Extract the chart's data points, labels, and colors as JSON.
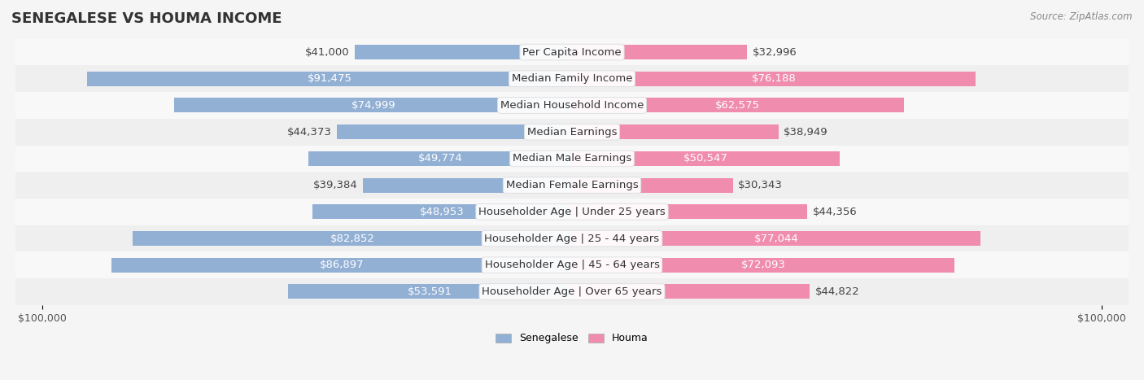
{
  "title": "SENEGALESE VS HOUMA INCOME",
  "source": "Source: ZipAtlas.com",
  "categories": [
    "Per Capita Income",
    "Median Family Income",
    "Median Household Income",
    "Median Earnings",
    "Median Male Earnings",
    "Median Female Earnings",
    "Householder Age | Under 25 years",
    "Householder Age | 25 - 44 years",
    "Householder Age | 45 - 64 years",
    "Householder Age | Over 65 years"
  ],
  "senegalese": [
    41000,
    91475,
    74999,
    44373,
    49774,
    39384,
    48953,
    82852,
    86897,
    53591
  ],
  "houma": [
    32996,
    76188,
    62575,
    38949,
    50547,
    30343,
    44356,
    77044,
    72093,
    44822
  ],
  "senegalese_labels": [
    "$41,000",
    "$91,475",
    "$74,999",
    "$44,373",
    "$49,774",
    "$39,384",
    "$48,953",
    "$82,852",
    "$86,897",
    "$53,591"
  ],
  "houma_labels": [
    "$32,996",
    "$76,188",
    "$62,575",
    "$38,949",
    "$50,547",
    "$30,343",
    "$44,356",
    "$77,044",
    "$72,093",
    "$44,822"
  ],
  "max_val": 100000,
  "blue_color": "#92afd4",
  "pink_color": "#f08cad",
  "blue_dark": "#6688bb",
  "pink_dark": "#e06090",
  "bg_color": "#f5f5f5",
  "row_bg": "#ffffff",
  "row_alt_bg": "#f0f0f0",
  "label_fontsize": 9.5,
  "cat_fontsize": 9.5,
  "title_fontsize": 13
}
